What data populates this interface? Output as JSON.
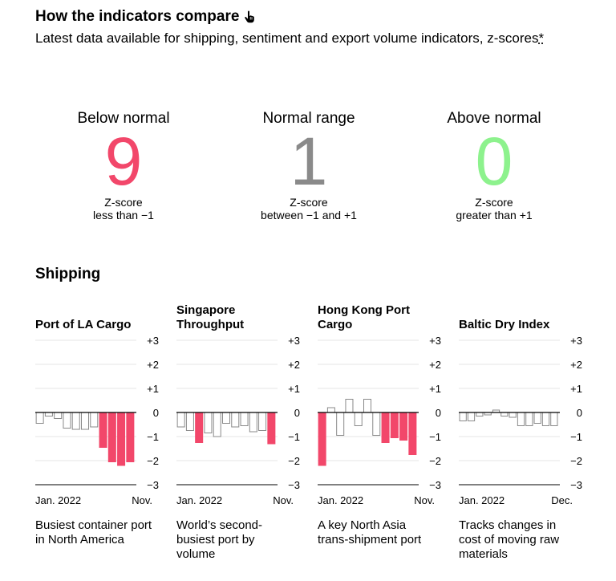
{
  "header": {
    "title": "How the indicators compare",
    "subtitle": "Latest data available for shipping, sentiment and export volume indicators, z-scores",
    "footnote_mark": "*"
  },
  "summary": [
    {
      "label": "Below normal",
      "count": "9",
      "desc1": "Z-score",
      "desc2": "less than −1",
      "color": "#f2476a"
    },
    {
      "label": "Normal range",
      "count": "1",
      "desc1": "Z-score",
      "desc2": "between −1 and +1",
      "color": "#8a8a8a"
    },
    {
      "label": "Above normal",
      "count": "0",
      "desc1": "Z-score",
      "desc2": "greater than +1",
      "color": "#8df28d"
    }
  ],
  "section": {
    "title": "Shipping"
  },
  "colors": {
    "below": "#f2476a",
    "normal_fill": "#ffffff",
    "normal_stroke": "#8a8a8a",
    "grid": "#e6e6e6",
    "axis": "#000000"
  },
  "chart_data": [
    {
      "type": "bar",
      "title": "Port of LA Cargo",
      "y_ticks": [
        "+3",
        "+2",
        "+1",
        "0",
        "−1",
        "−2",
        "−3"
      ],
      "ylim": [
        -3,
        3
      ],
      "x_start": "Jan. 2022",
      "x_end": "Nov.",
      "values": [
        -0.45,
        -0.15,
        -0.25,
        -0.65,
        -0.7,
        -0.7,
        -0.6,
        -1.45,
        -2.05,
        -2.2,
        -2.05
      ],
      "description": "Busiest container port in North America"
    },
    {
      "type": "bar",
      "title": "Singapore Throughput",
      "y_ticks": [
        "+3",
        "+2",
        "+1",
        "0",
        "−1",
        "−2",
        "−3"
      ],
      "ylim": [
        -3,
        3
      ],
      "x_start": "Jan. 2022",
      "x_end": "Nov.",
      "values": [
        -0.6,
        -0.75,
        -1.25,
        -0.85,
        -1.0,
        -0.45,
        -0.6,
        -0.55,
        -0.8,
        -0.75,
        -1.3
      ],
      "description": "World’s second-busiest port by volume"
    },
    {
      "type": "bar",
      "title": "Hong Kong Port Cargo",
      "y_ticks": [
        "+3",
        "+2",
        "+1",
        "0",
        "−1",
        "−2",
        "−3"
      ],
      "ylim": [
        -3,
        3
      ],
      "x_start": "Jan. 2022",
      "x_end": "Nov.",
      "values": [
        -2.2,
        0.2,
        -0.95,
        0.55,
        -0.55,
        0.55,
        -0.95,
        -1.25,
        -1.05,
        -1.15,
        -1.75
      ],
      "description": "A key North Asia trans-shipment port"
    },
    {
      "type": "bar",
      "title": "Baltic Dry Index",
      "y_ticks": [
        "+3",
        "+2",
        "+1",
        "0",
        "−1",
        "−2",
        "−3"
      ],
      "ylim": [
        -3,
        3
      ],
      "x_start": "Jan. 2022",
      "x_end": "Dec.",
      "values": [
        -0.35,
        -0.35,
        -0.15,
        -0.1,
        0.1,
        -0.15,
        -0.2,
        -0.55,
        -0.55,
        -0.45,
        -0.55,
        -0.55
      ],
      "description": "Tracks changes in cost of moving raw materials"
    }
  ]
}
